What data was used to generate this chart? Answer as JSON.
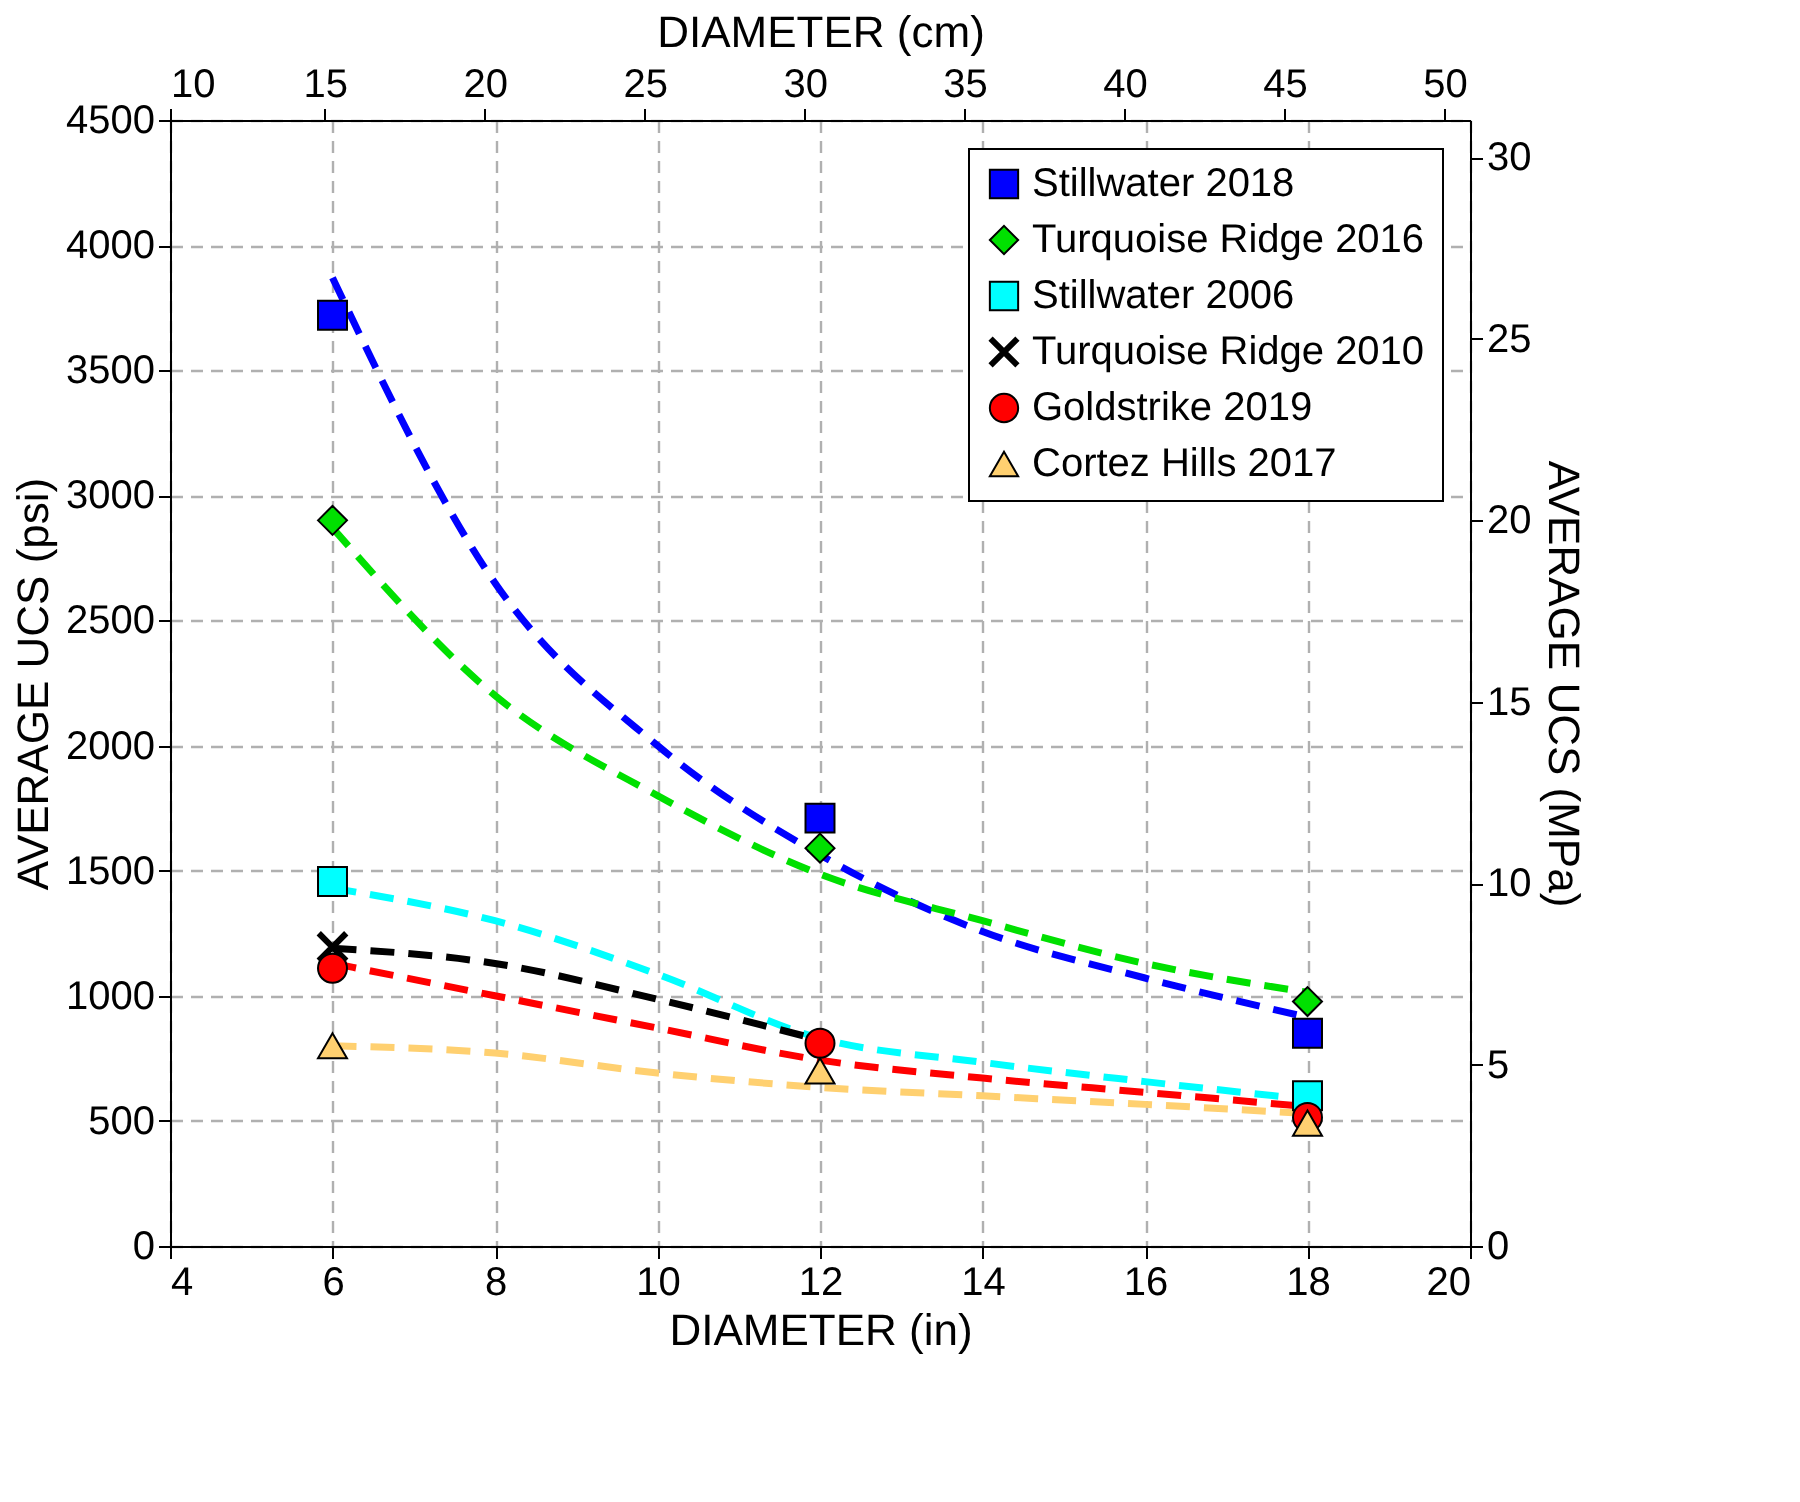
{
  "chart_data": {
    "type": "scatter",
    "xlabel": "DIAMETER (in)",
    "ylabel": "AVERAGE UCS (psi)",
    "x2label": "DIAMETER (cm)",
    "y2label": "AVERAGE UCS (MPa)",
    "x": [
      6,
      12,
      18
    ],
    "xlim": [
      4,
      20
    ],
    "xticks": [
      4,
      6,
      8,
      10,
      12,
      14,
      16,
      18,
      20
    ],
    "ylim": [
      0,
      4500
    ],
    "yticks": [
      0,
      500,
      1000,
      1500,
      2000,
      2500,
      3000,
      3500,
      4000,
      4500
    ],
    "x2lim": [
      10.16,
      50.8
    ],
    "x2ticks": [
      {
        "value": 10.16,
        "label": "10"
      },
      15,
      20,
      25,
      30,
      35,
      40,
      45,
      50
    ],
    "y2lim": [
      0,
      31.03
    ],
    "y2ticks": [
      0,
      5,
      10,
      15,
      20,
      25,
      30
    ],
    "grid": true,
    "legend": "top right",
    "series": [
      {
        "name": "Stillwater 2018",
        "color": "#0000ff",
        "marker": "square",
        "values": [
          3720,
          1710,
          850
        ]
      },
      {
        "name": "Turquoise Ridge 2016",
        "color": "#00e000",
        "marker": "diamond",
        "values": [
          2900,
          1590,
          977
        ]
      },
      {
        "name": "Stillwater 2006",
        "color": "#00ffff",
        "marker": "square",
        "values": [
          1457,
          null,
          600
        ]
      },
      {
        "name": "Turquoise Ridge 2010",
        "color": "#000000",
        "marker": "cross",
        "values": [
          1195,
          null,
          null
        ]
      },
      {
        "name": "Goldstrike 2019",
        "color": "#ff0000",
        "marker": "circle",
        "values": [
          1110,
          810,
          514
        ]
      },
      {
        "name": "Cortez Hills 2017",
        "color": "#ffd070",
        "marker": "triangle",
        "values": [
          800,
          700,
          491
        ]
      },
      {
        "type": "line",
        "color": "#0000ff",
        "line_style": "dashed",
        "marker": "none",
        "x": [
          6,
          8,
          10,
          12,
          14,
          16,
          18
        ],
        "values": [
          3870,
          2650,
          2000,
          1563,
          1257,
          1071,
          914
        ]
      },
      {
        "type": "line",
        "color": "#00e000",
        "line_style": "dashed",
        "marker": "none",
        "x": [
          6,
          8,
          10,
          12,
          14,
          16,
          18
        ],
        "values": [
          2870,
          2200,
          1800,
          1486,
          1300,
          1129,
          1014
        ]
      },
      {
        "type": "line",
        "color": "#00ffff",
        "line_style": "dashed",
        "marker": "none",
        "x": [
          6,
          8,
          10,
          12,
          14,
          16,
          18
        ],
        "values": [
          1430,
          1300,
          1086,
          830,
          734,
          657,
          586
        ]
      },
      {
        "type": "line",
        "color": "#000000",
        "line_style": "dashed",
        "marker": "none",
        "x": [
          6,
          8,
          10,
          12
        ],
        "values": [
          1190,
          1129,
          986,
          823
        ]
      },
      {
        "type": "line",
        "color": "#ff0000",
        "line_style": "dashed",
        "marker": "none",
        "x": [
          6,
          8,
          10,
          12,
          14,
          16,
          18
        ],
        "values": [
          1130,
          1000,
          871,
          743,
          671,
          614,
          557
        ]
      },
      {
        "type": "line",
        "color": "#ffd070",
        "line_style": "dashed",
        "marker": "none",
        "x": [
          6,
          8,
          10,
          12,
          14,
          16,
          18
        ],
        "values": [
          800,
          771,
          691,
          634,
          600,
          566,
          529
        ]
      }
    ]
  }
}
